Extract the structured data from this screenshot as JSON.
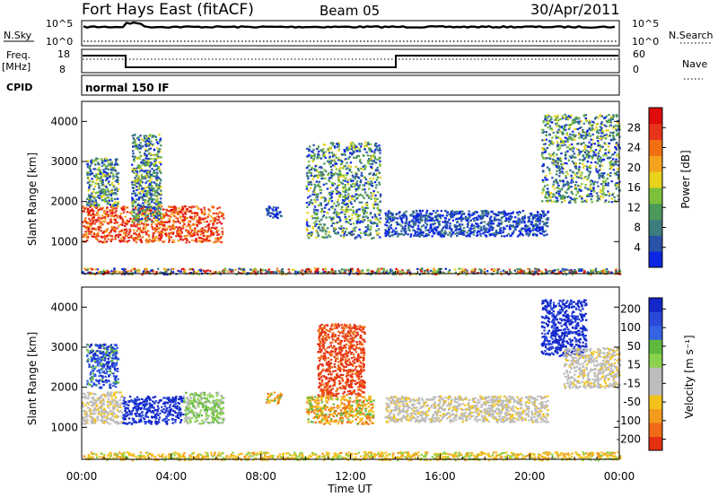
{
  "header": {
    "title": "Fort Hays East (fitACF)",
    "beam": "Beam 05",
    "date": "30/Apr/2011"
  },
  "top_panels": {
    "nsky_label": "N.Sky",
    "nsky_ticks": [
      "10^5",
      "10^0"
    ],
    "nsearch_label": "N.Search",
    "nsearch_ticks": [
      "10^5",
      "10^0"
    ],
    "freq_label": "Freq.",
    "freq_unit": "[MHz]",
    "freq_ticks": [
      "18",
      "8"
    ],
    "nave_label": "Nave",
    "nave_ticks": [
      "60",
      "0"
    ],
    "cpid_label": "CPID",
    "cpid_value": "normal 150 IF"
  },
  "colors": {
    "power_scale": [
      "#0b27e3",
      "#2952a8",
      "#3d7d7d",
      "#4c9a5a",
      "#7fc03a",
      "#e8d21c",
      "#f5a31e",
      "#f16e13",
      "#e7341a",
      "#e00c0c"
    ],
    "velocity_scale": [
      "#1327c9",
      "#2a49d9",
      "#3463e3",
      "#5fb93f",
      "#8ad24b",
      "#bcbcbc",
      "#bdbdbd",
      "#f4c21a",
      "#f39b1d",
      "#f06a17",
      "#e53012"
    ]
  },
  "chart_data": [
    {
      "type": "heatmap",
      "name": "power",
      "ylabel": "Slant Range [km]",
      "xlabel": "Time UT",
      "x_ticks": [
        "00:00",
        "04:00",
        "08:00",
        "12:00",
        "16:00",
        "20:00",
        "00:00"
      ],
      "y_ticks": [
        "1000",
        "2000",
        "3000",
        "4000"
      ],
      "ylim": [
        200,
        4500
      ],
      "xlim_hours": [
        0,
        24
      ],
      "colorbar_label": "Power [dB]",
      "colorbar_ticks": [
        "4",
        "8",
        "12",
        "16",
        "20",
        "24",
        "28"
      ],
      "colorbar_range": [
        0,
        32
      ],
      "regions": [
        {
          "t0": 0.0,
          "t1": 6.3,
          "r0": 1000,
          "r1": 1900,
          "level": "high"
        },
        {
          "t0": 0.2,
          "t1": 1.6,
          "r0": 1900,
          "r1": 3100,
          "level": "medium"
        },
        {
          "t0": 2.2,
          "t1": 3.5,
          "r0": 1500,
          "r1": 3700,
          "level": "medium"
        },
        {
          "t0": 8.2,
          "t1": 8.9,
          "r0": 1600,
          "r1": 1900,
          "level": "low"
        },
        {
          "t0": 10.0,
          "t1": 13.3,
          "r0": 1100,
          "r1": 3500,
          "level": "medium"
        },
        {
          "t0": 13.5,
          "t1": 20.8,
          "r0": 1150,
          "r1": 1800,
          "level": "low"
        },
        {
          "t0": 20.5,
          "t1": 24.0,
          "r0": 2000,
          "r1": 4200,
          "level": "medium"
        },
        {
          "t0": 0.0,
          "t1": 24.0,
          "r0": 200,
          "r1": 350,
          "level": "mixed"
        }
      ]
    },
    {
      "type": "heatmap",
      "name": "velocity",
      "ylabel": "Slant Range [km]",
      "xlabel": "Time UT",
      "x_ticks": [
        "00:00",
        "04:00",
        "08:00",
        "12:00",
        "16:00",
        "20:00",
        "00:00"
      ],
      "y_ticks": [
        "1000",
        "2000",
        "3000",
        "4000"
      ],
      "ylim": [
        200,
        4500
      ],
      "xlim_hours": [
        0,
        24
      ],
      "colorbar_label": "Velocity [m s⁻¹]",
      "colorbar_ticks": [
        "200",
        "100",
        "50",
        "15",
        "-15",
        "-50",
        "-100",
        "-200"
      ],
      "regions": [
        {
          "t0": 0.0,
          "t1": 1.8,
          "r0": 1100,
          "r1": 1900,
          "level": "ground"
        },
        {
          "t0": 0.2,
          "t1": 1.6,
          "r0": 2000,
          "r1": 3100,
          "level": "positive"
        },
        {
          "t0": 1.8,
          "t1": 4.5,
          "r0": 1100,
          "r1": 1800,
          "level": "strong-positive"
        },
        {
          "t0": 4.5,
          "t1": 6.3,
          "r0": 1100,
          "r1": 1900,
          "level": "weak-positive"
        },
        {
          "t0": 8.2,
          "t1": 8.9,
          "r0": 1600,
          "r1": 1900,
          "level": "negative"
        },
        {
          "t0": 10.5,
          "t1": 12.6,
          "r0": 1800,
          "r1": 3600,
          "level": "strong-negative"
        },
        {
          "t0": 10.0,
          "t1": 13.0,
          "r0": 1100,
          "r1": 1800,
          "level": "negative"
        },
        {
          "t0": 13.5,
          "t1": 20.8,
          "r0": 1150,
          "r1": 1800,
          "level": "ground"
        },
        {
          "t0": 20.5,
          "t1": 22.5,
          "r0": 2800,
          "r1": 4200,
          "level": "strong-positive"
        },
        {
          "t0": 21.5,
          "t1": 24.0,
          "r0": 2000,
          "r1": 3000,
          "level": "ground"
        },
        {
          "t0": 0.0,
          "t1": 24.0,
          "r0": 200,
          "r1": 400,
          "level": "negative-low"
        }
      ]
    }
  ]
}
